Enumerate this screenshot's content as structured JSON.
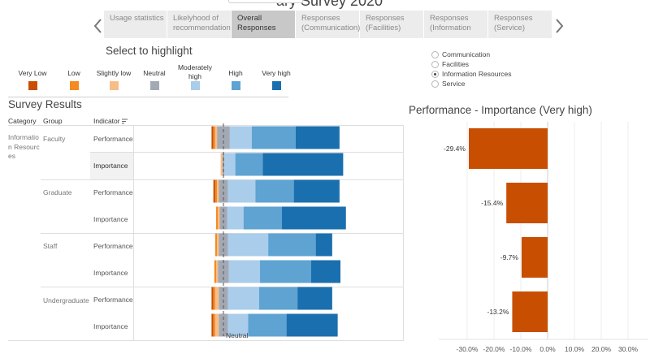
{
  "title_fragment": "ary Survey 2020",
  "tabs": [
    {
      "line1": "Usage statistics",
      "line2": ""
    },
    {
      "line1": "Likelyhood of",
      "line2": "recommendation"
    },
    {
      "line1": "Overall Responses",
      "line2": ""
    },
    {
      "line1": "Responses",
      "line2": "(Communication)"
    },
    {
      "line1": "Responses",
      "line2": "(Facilities)"
    },
    {
      "line1": "Responses",
      "line2": "(Information"
    },
    {
      "line1": "Responses",
      "line2": "(Service)"
    }
  ],
  "active_tab": "Overall Responses",
  "highlight": {
    "title": "Select to highlight",
    "items": [
      {
        "label": "Very Low",
        "color": "#c84f02"
      },
      {
        "label": "Low",
        "color": "#f48a22"
      },
      {
        "label": "Slightly low",
        "color": "#f8bd86"
      },
      {
        "label": "Neutral",
        "color": "#a3a9b4"
      },
      {
        "label": "Moderately high",
        "color": "#a9cdea"
      },
      {
        "label": "High",
        "color": "#5ea3d2"
      },
      {
        "label": "Very high",
        "color": "#1a6fae"
      }
    ]
  },
  "filter": {
    "options": [
      "Communication",
      "Facilities",
      "Information Resources",
      "Service"
    ],
    "selected": "Information Resources"
  },
  "survey": {
    "title": "Survey Results",
    "headers": {
      "category": "Category",
      "group": "Group",
      "indicator": "Indicator"
    },
    "category": "Information Resources",
    "groups": [
      "Faculty",
      "Graduate",
      "Staff",
      "Undergraduate"
    ],
    "indicators": [
      "Performance",
      "Importance"
    ],
    "neutral_label": "Neutral"
  },
  "chart_data": [
    {
      "type": "bar",
      "orientation": "horizontal",
      "stacked": true,
      "diverging_at": "Neutral",
      "segments": [
        "Very Low",
        "Low",
        "Slightly low",
        "Neutral",
        "Moderately high",
        "High",
        "Very high"
      ],
      "colors": [
        "#c84f02",
        "#f48a22",
        "#f8bd86",
        "#a3a9b4",
        "#a9cdea",
        "#5ea3d2",
        "#1a6fae"
      ],
      "rows": [
        {
          "group": "Faculty",
          "indicator": "Performance",
          "values": [
            1,
            1,
            1,
            7,
            12,
            24,
            24
          ]
        },
        {
          "group": "Faculty",
          "indicator": "Importance",
          "values": [
            0,
            0,
            1,
            1,
            6,
            15,
            44
          ]
        },
        {
          "group": "Graduate",
          "indicator": "Performance",
          "values": [
            1,
            1,
            1,
            5,
            15,
            21,
            25
          ]
        },
        {
          "group": "Graduate",
          "indicator": "Importance",
          "values": [
            0,
            1,
            1,
            4,
            9,
            21,
            35
          ]
        },
        {
          "group": "Staff",
          "indicator": "Performance",
          "values": [
            0,
            1,
            1,
            5,
            22,
            26,
            9
          ]
        },
        {
          "group": "Staff",
          "indicator": "Importance",
          "values": [
            0,
            1,
            1,
            6,
            17,
            28,
            16
          ]
        },
        {
          "group": "Undergraduate",
          "indicator": "Performance",
          "values": [
            1,
            1,
            2,
            5,
            17,
            21,
            19
          ]
        },
        {
          "group": "Undergraduate",
          "indicator": "Importance",
          "values": [
            1,
            1,
            2,
            5,
            11,
            21,
            28
          ]
        }
      ]
    },
    {
      "type": "bar",
      "orientation": "horizontal",
      "title": "Performance - Importance (Very high)",
      "categories": [
        "Faculty",
        "Graduate",
        "Staff",
        "Undergraduate"
      ],
      "values": [
        -29.4,
        -15.4,
        -9.7,
        -13.2
      ],
      "value_labels": [
        "-29.4%",
        "-15.4%",
        "-9.7%",
        "-13.2%"
      ],
      "color": "#c84f02",
      "xlim": [
        -30,
        30
      ],
      "x_ticks": [
        "-30.0%",
        "-20.0%",
        "-10.0%",
        "0.0%",
        "10.0%",
        "20.0%",
        "30.0%"
      ]
    }
  ]
}
